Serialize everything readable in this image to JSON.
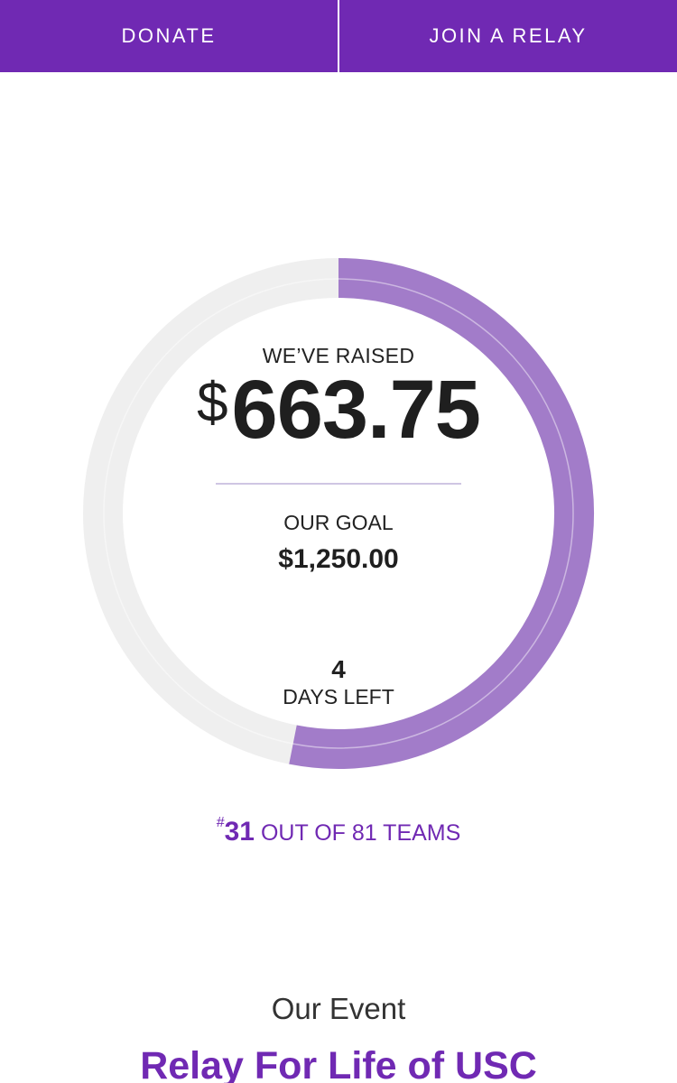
{
  "topbar": {
    "donate_label": "DONATE",
    "join_label": "JOIN A RELAY",
    "background": "#7029b3"
  },
  "progress": {
    "raised_label": "WE’VE RAISED",
    "raised_currency": "$",
    "raised_value": "663.75",
    "goal_label": "OUR GOAL",
    "goal_value": "$1,250.00",
    "days_value": "4",
    "days_label": "DAYS LEFT",
    "fraction_raised": 0.531,
    "ring_color": "#a27cc9",
    "track_color": "#efefef"
  },
  "rank": {
    "hash": "#",
    "number": "31",
    "suffix": "OUT OF 81 TEAMS"
  },
  "event": {
    "label": "Our Event",
    "name": "Relay For Life of USC",
    "accent": "#7029b3"
  }
}
